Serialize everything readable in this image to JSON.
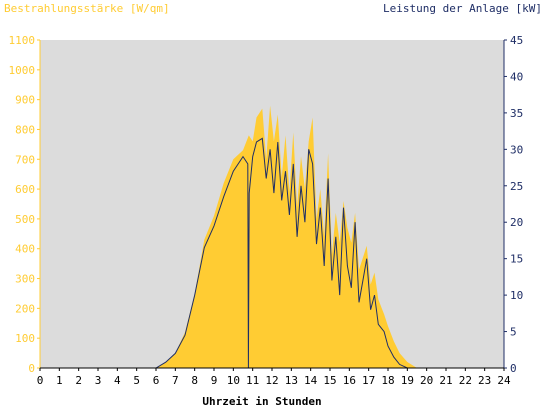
{
  "chart_data": {
    "type": "area",
    "title_left": "Bestrahlungsstärke [W/qm]",
    "title_right": "Leistung der Anlage [kW]",
    "xlabel": "Uhrzeit in Stunden",
    "grid": false,
    "background": "#dcdcdc",
    "colors": {
      "irradiance": "#ffcc33",
      "power": "#1f2e66",
      "left_axis_text": "#ffcc33",
      "right_axis_text": "#1f2e66",
      "bottom_axis_text": "#000000"
    },
    "x_ticks": [
      "0",
      "1",
      "2",
      "3",
      "4",
      "5",
      "6",
      "7",
      "8",
      "9",
      "10",
      "11",
      "12",
      "13",
      "14",
      "15",
      "16",
      "17",
      "18",
      "19",
      "20",
      "21",
      "22",
      "23",
      "24"
    ],
    "xlim": [
      0,
      24
    ],
    "y_left_ticks": [
      "0",
      "100",
      "200",
      "300",
      "400",
      "500",
      "600",
      "700",
      "800",
      "900",
      "1000",
      "1100"
    ],
    "ylim_left": [
      0,
      1100
    ],
    "y_right_ticks": [
      "0",
      "5",
      "10",
      "15",
      "20",
      "25",
      "30",
      "35",
      "40",
      "45"
    ],
    "ylim_right": [
      0,
      45
    ],
    "series": [
      {
        "name": "Bestrahlungsstärke",
        "axis": "left",
        "x": [
          0,
          6,
          6.5,
          7,
          7.5,
          8,
          8.5,
          9,
          9.5,
          10,
          10.5,
          10.8,
          11,
          11.2,
          11.5,
          11.7,
          11.9,
          12.1,
          12.3,
          12.5,
          12.7,
          12.9,
          13.1,
          13.3,
          13.5,
          13.7,
          13.9,
          14.1,
          14.3,
          14.5,
          14.7,
          14.9,
          15.1,
          15.3,
          15.5,
          15.7,
          15.9,
          16.1,
          16.3,
          16.5,
          16.7,
          16.9,
          17.1,
          17.3,
          17.5,
          17.8,
          18,
          18.3,
          18.6,
          19,
          19.5,
          24
        ],
        "y": [
          0,
          0,
          20,
          50,
          120,
          250,
          430,
          510,
          620,
          700,
          730,
          780,
          760,
          840,
          870,
          700,
          880,
          760,
          850,
          640,
          780,
          590,
          790,
          540,
          710,
          600,
          760,
          840,
          500,
          600,
          440,
          720,
          380,
          520,
          420,
          560,
          470,
          420,
          520,
          330,
          370,
          410,
          280,
          320,
          230,
          180,
          140,
          90,
          50,
          20,
          0,
          0
        ]
      },
      {
        "name": "Leistung der Anlage",
        "axis": "right",
        "x": [
          0,
          6,
          6.5,
          7,
          7.5,
          8,
          8.5,
          9,
          9.5,
          10,
          10.5,
          10.75,
          10.78,
          10.82,
          11,
          11.2,
          11.5,
          11.7,
          11.9,
          12.1,
          12.3,
          12.5,
          12.7,
          12.9,
          13.1,
          13.3,
          13.5,
          13.7,
          13.9,
          14.1,
          14.3,
          14.5,
          14.7,
          14.9,
          15.1,
          15.3,
          15.5,
          15.7,
          15.9,
          16.1,
          16.3,
          16.5,
          16.7,
          16.9,
          17.1,
          17.3,
          17.5,
          17.8,
          18,
          18.3,
          18.6,
          19,
          19.5,
          24
        ],
        "y": [
          0,
          0,
          0.8,
          2,
          4.5,
          10,
          16.5,
          19.5,
          23.5,
          27,
          29,
          28,
          0,
          24,
          29,
          31,
          31.5,
          26,
          30,
          24,
          31,
          23,
          27,
          21,
          28,
          18,
          25,
          20,
          30,
          28,
          17,
          22,
          14,
          26,
          12,
          18,
          10,
          22,
          14,
          11,
          20,
          9,
          12,
          15,
          8,
          10,
          6,
          5,
          3,
          1.5,
          0.5,
          0,
          0,
          0
        ]
      }
    ]
  }
}
